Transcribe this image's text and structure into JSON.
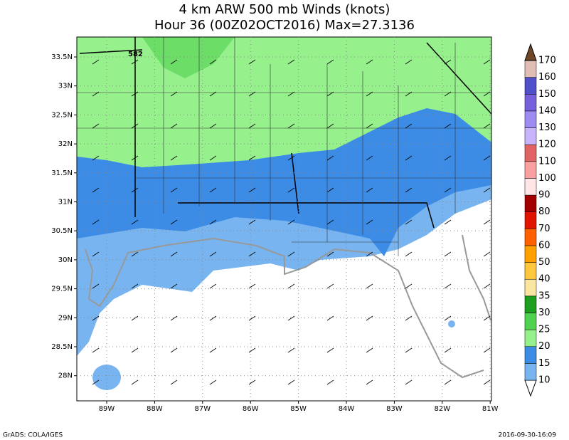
{
  "header": {
    "title_line1": "4 km ARW 500 mb Winds (knots)",
    "title_line2": "Hour 36 (00Z02OCT2016) Max=27.3136"
  },
  "map": {
    "contour_label": "582",
    "lat_labels": [
      "33.5N",
      "33N",
      "32.5N",
      "32N",
      "31.5N",
      "31N",
      "30.5N",
      "30N",
      "29.5N",
      "29N",
      "28.5N",
      "28N"
    ],
    "lon_labels": [
      "89W",
      "88W",
      "87W",
      "86W",
      "85W",
      "84W",
      "83W",
      "82W",
      "81W"
    ]
  },
  "colorbar": {
    "labels": [
      "10",
      "15",
      "20",
      "25",
      "30",
      "35",
      "40",
      "50",
      "60",
      "70",
      "80",
      "90",
      "100",
      "110",
      "120",
      "130",
      "140",
      "150",
      "160",
      "170"
    ]
  },
  "footer": {
    "left": "GrADS: COLA/IGES",
    "right": "2016-09-30-16:09"
  }
}
